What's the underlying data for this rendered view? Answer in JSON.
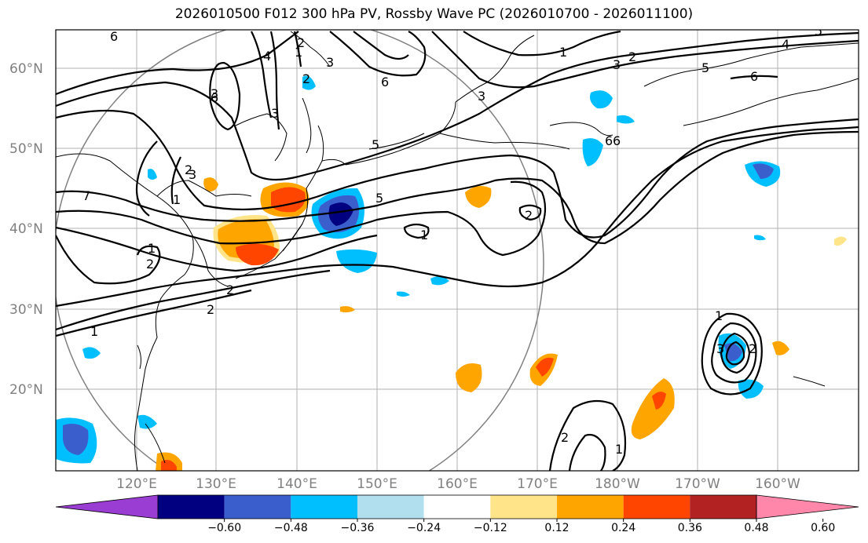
{
  "title": "2026010500 F012 300 hPa PV, Rossby Wave PC (2026010700 - 2026011100)",
  "lat_labels": [
    "60°N",
    "50°N",
    "40°N",
    "30°N",
    "20°N"
  ],
  "lon_labels": [
    "120°E",
    "130°E",
    "140°E",
    "150°E",
    "160°E",
    "170°E",
    "180°W",
    "170°W",
    "160°W"
  ],
  "colorbar": {
    "colors": [
      "#9a3dd3",
      "#000080",
      "#3a5fcd",
      "#00bfff",
      "#b2dfee",
      "#ffffff",
      "#ffe48a",
      "#ffa500",
      "#ff4500",
      "#b22222",
      "#ff88aa"
    ],
    "tick_labels": [
      "−0.60",
      "−0.48",
      "−0.36",
      "−0.24",
      "−0.12",
      "0.12",
      "0.24",
      "0.36",
      "0.48",
      "0.60"
    ]
  },
  "contour_labels": [
    "6",
    "3",
    "2",
    "1",
    "7",
    "6",
    "3",
    "1",
    "2",
    "3",
    "3",
    "5",
    "4",
    "5",
    "6",
    "4",
    "6",
    "6",
    "3",
    "2",
    "1",
    "5",
    "5",
    "2",
    "1",
    "2",
    "2",
    "1",
    "2",
    "1",
    "3",
    "2",
    "1",
    "2",
    "1",
    "3",
    "2",
    "6"
  ]
}
